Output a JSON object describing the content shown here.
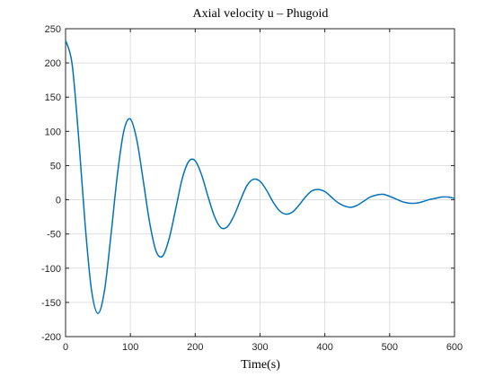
{
  "chart_data": {
    "type": "line",
    "title": "Axial velocity u – Phugoid",
    "x_label": "Time(s)",
    "x": [
      0,
      10,
      20,
      30,
      40,
      50,
      60,
      70,
      80,
      90,
      100,
      110,
      120,
      130,
      140,
      150,
      160,
      170,
      180,
      190,
      200,
      210,
      220,
      230,
      240,
      250,
      260,
      270,
      280,
      290,
      300,
      310,
      320,
      330,
      340,
      350,
      360,
      370,
      380,
      390,
      400,
      410,
      420,
      430,
      440,
      450,
      460,
      470,
      480,
      490,
      500,
      510,
      520,
      530,
      540,
      550,
      560,
      570,
      580,
      590,
      600
    ],
    "series": [
      {
        "name": "u",
        "color": "#0072bd",
        "values": [
          233,
          199,
          93,
          -34,
          -132,
          -166,
          -133,
          -52,
          37,
          101,
          118,
          87,
          27,
          -35,
          -76,
          -82,
          -56,
          -13,
          31,
          56,
          57,
          36,
          4,
          -25,
          -41,
          -39,
          -23,
          0,
          21,
          30,
          27,
          14,
          -3,
          -16,
          -21,
          -18,
          -8,
          4,
          13,
          15,
          12,
          4,
          -4,
          -9,
          -11,
          -8,
          -2,
          4,
          7,
          8,
          5,
          1,
          -3,
          -5,
          -5,
          -3,
          0,
          2,
          4,
          4,
          2
        ]
      }
    ],
    "xlim": [
      0,
      600
    ],
    "xticks": [
      0,
      100,
      200,
      300,
      400,
      500,
      600
    ],
    "ylim": [
      -200,
      250
    ],
    "yticks": [
      -200,
      -150,
      -100,
      -50,
      0,
      50,
      100,
      150,
      200,
      250
    ],
    "grid": true
  }
}
